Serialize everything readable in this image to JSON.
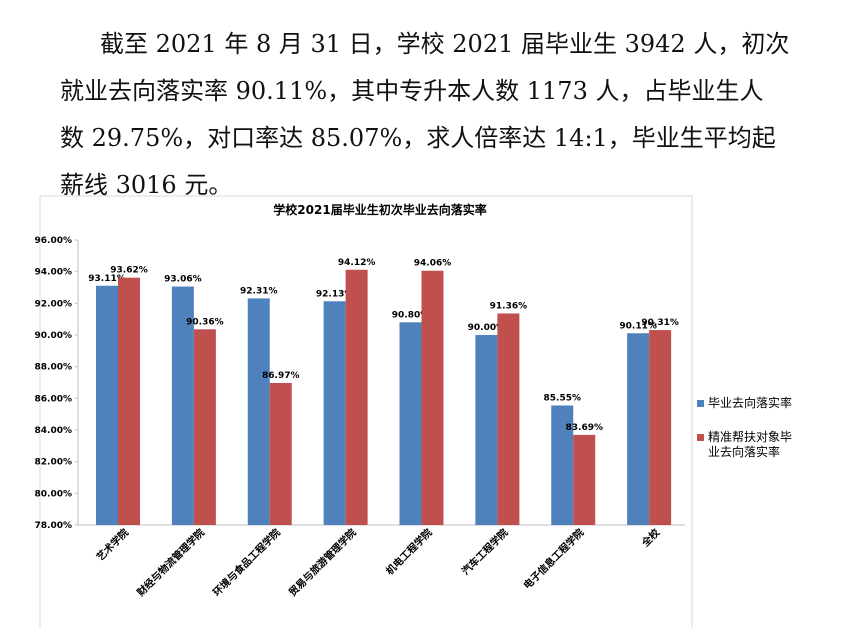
{
  "paragraph": {
    "lines": [
      "截至 2021 年 8 月 31 日，学校 2021 届毕业生 3942 人，初次",
      "就业去向落实率 90.11%，其中专升本人数 1173 人，占毕业生人",
      "数 29.75%，对口率达 85.07%，求人倍率达 14:1，毕业生平均起",
      "薪线 3016 元。"
    ]
  },
  "chart_data": {
    "type": "bar",
    "title": "学校2021届毕业生初次毕业去向落实率",
    "categories": [
      "艺术学院",
      "财经与物流管理学院",
      "环境与食品工程学院",
      "贸易与旅游管理学院",
      "机电工程学院",
      "汽车工程学院",
      "电子信息工程学院",
      "全校"
    ],
    "series": [
      {
        "name": "毕业去向落实率",
        "color": "#4f81bd",
        "values": [
          93.11,
          93.06,
          92.31,
          92.13,
          90.8,
          90.0,
          85.55,
          90.11
        ],
        "value_labels": [
          "93.11%",
          "93.06%",
          "92.31%",
          "92.13%",
          "90.80%",
          "90.00%",
          "85.55%",
          "90.11%"
        ]
      },
      {
        "name": "精准帮扶对象毕业去向落实率",
        "color": "#c0504d",
        "values": [
          93.62,
          90.36,
          86.97,
          94.12,
          94.06,
          91.36,
          83.69,
          90.31
        ],
        "value_labels": [
          "93.62%",
          "90.36%",
          "86.97%",
          "94.12%",
          "94.06%",
          "91.36%",
          "83.69%",
          "90.31%"
        ]
      }
    ],
    "ylim": [
      78,
      96
    ],
    "yticks": [
      {
        "value": 78,
        "label": "78.00%"
      },
      {
        "value": 80,
        "label": "80.00%"
      },
      {
        "value": 82,
        "label": "82.00%"
      },
      {
        "value": 84,
        "label": "84.00%"
      },
      {
        "value": 86,
        "label": "86.00%"
      },
      {
        "value": 88,
        "label": "88.00%"
      },
      {
        "value": 90,
        "label": "90.00%"
      },
      {
        "value": 92,
        "label": "92.00%"
      },
      {
        "value": 94,
        "label": "94.00%"
      },
      {
        "value": 96,
        "label": "96.00%"
      }
    ],
    "legend": "right"
  }
}
